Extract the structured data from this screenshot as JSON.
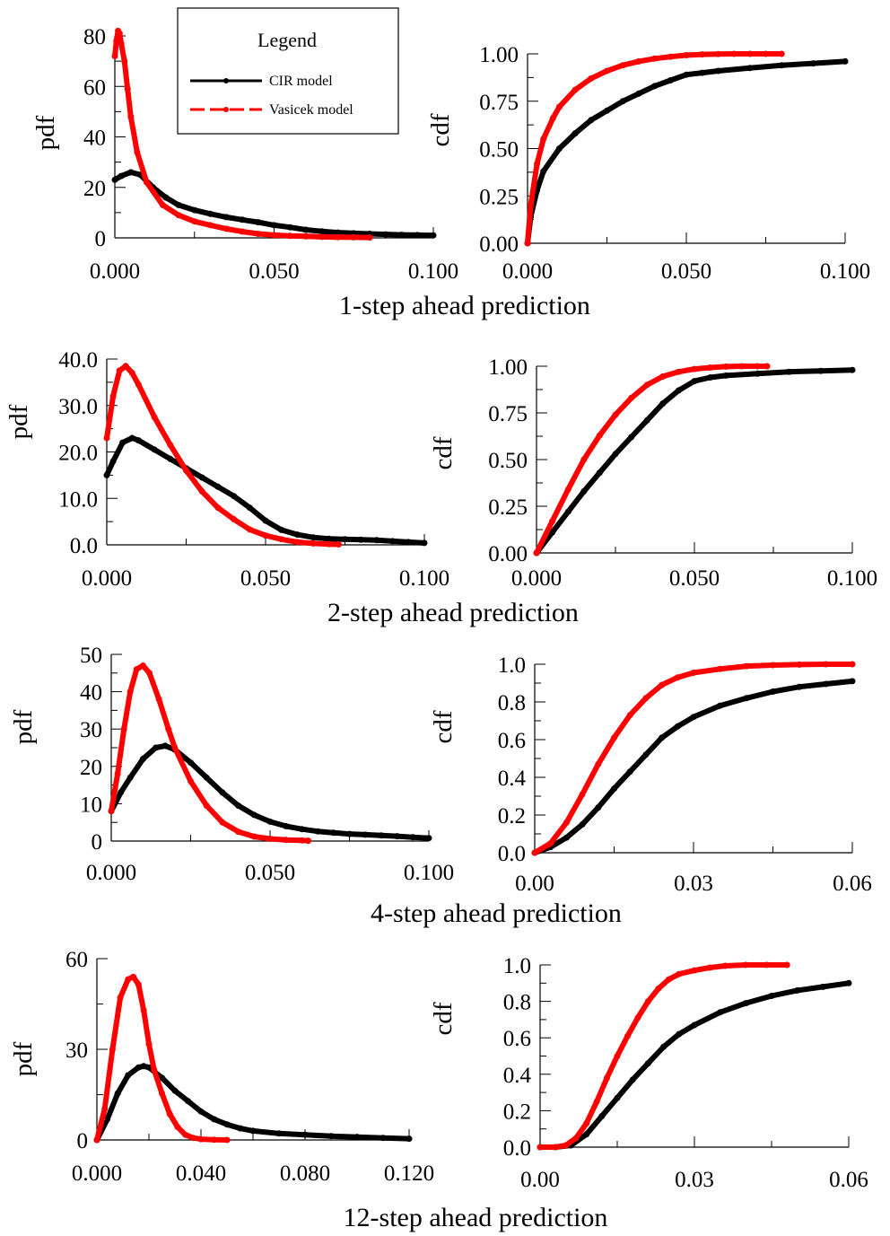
{
  "legend": {
    "title": "Legend",
    "entries": [
      {
        "label": "CIR model",
        "color": "#000000"
      },
      {
        "label": "Vasicek model",
        "color": "#ff0000"
      }
    ]
  },
  "chart_data": [
    {
      "type": "line",
      "kind": "pdf",
      "ylabel": "pdf",
      "caption": "1-step ahead prediction",
      "xlim": [
        0,
        0.1
      ],
      "ylim": [
        0,
        80
      ],
      "xticks": [
        "0.000",
        "0.050",
        "0.100"
      ],
      "yticks": [
        "0",
        "20",
        "40",
        "60",
        "80"
      ],
      "series": [
        {
          "x": [
            0,
            0.002,
            0.005,
            0.008,
            0.012,
            0.016,
            0.02,
            0.025,
            0.03,
            0.035,
            0.04,
            0.045,
            0.05,
            0.055,
            0.06,
            0.065,
            0.07,
            0.075,
            0.08,
            0.085,
            0.09,
            0.095,
            0.1
          ],
          "y": [
            23,
            24.5,
            26,
            25,
            20,
            16,
            13,
            11,
            9.5,
            8.2,
            7.2,
            6.2,
            5,
            4.2,
            3.2,
            2.6,
            2.1,
            1.8,
            1.6,
            1.4,
            1.2,
            1.1,
            1.0
          ]
        },
        {
          "x": [
            0,
            0.0005,
            0.001,
            0.0015,
            0.002,
            0.003,
            0.004,
            0.005,
            0.007,
            0.01,
            0.015,
            0.02,
            0.025,
            0.03,
            0.035,
            0.04,
            0.045,
            0.05,
            0.055,
            0.06,
            0.065,
            0.07,
            0.075,
            0.08
          ],
          "y": [
            72,
            78,
            82,
            81,
            77,
            70,
            59,
            48,
            34,
            22,
            13,
            9,
            6.5,
            5,
            3.6,
            2.5,
            1.6,
            1.1,
            0.8,
            0.6,
            0.4,
            0.3,
            0.2,
            0.15
          ]
        }
      ]
    },
    {
      "type": "line",
      "kind": "cdf",
      "ylabel": "cdf",
      "xlim": [
        0,
        0.1
      ],
      "ylim": [
        0,
        1
      ],
      "xticks": [
        "0.000",
        "0.050",
        "0.100"
      ],
      "yticks": [
        "0.00",
        "0.25",
        "0.50",
        "0.75",
        "1.00"
      ],
      "series": [
        {
          "x": [
            0,
            0.001,
            0.003,
            0.005,
            0.01,
            0.015,
            0.02,
            0.025,
            0.03,
            0.035,
            0.04,
            0.045,
            0.05,
            0.055,
            0.06,
            0.07,
            0.08,
            0.09,
            0.1
          ],
          "y": [
            0,
            0.14,
            0.28,
            0.38,
            0.5,
            0.58,
            0.65,
            0.7,
            0.75,
            0.79,
            0.83,
            0.86,
            0.89,
            0.9,
            0.91,
            0.925,
            0.94,
            0.95,
            0.96
          ]
        },
        {
          "x": [
            0,
            0.001,
            0.003,
            0.005,
            0.008,
            0.01,
            0.015,
            0.02,
            0.025,
            0.03,
            0.035,
            0.04,
            0.045,
            0.05,
            0.055,
            0.06,
            0.065,
            0.07,
            0.075,
            0.08
          ],
          "y": [
            0,
            0.2,
            0.42,
            0.55,
            0.66,
            0.72,
            0.81,
            0.87,
            0.91,
            0.94,
            0.96,
            0.975,
            0.985,
            0.993,
            0.997,
            0.999,
            1,
            1,
            1,
            1
          ]
        }
      ]
    },
    {
      "type": "line",
      "kind": "pdf",
      "ylabel": "pdf",
      "caption": "2-step ahead prediction",
      "xlim": [
        0,
        0.1
      ],
      "ylim": [
        0,
        40
      ],
      "xticks": [
        "0.000",
        "0.050",
        "0.100"
      ],
      "yticks": [
        "0.0",
        "10.0",
        "20.0",
        "30.0",
        "40.0"
      ],
      "series": [
        {
          "x": [
            0,
            0.002,
            0.005,
            0.008,
            0.01,
            0.015,
            0.02,
            0.025,
            0.03,
            0.035,
            0.04,
            0.045,
            0.05,
            0.055,
            0.06,
            0.065,
            0.07,
            0.075,
            0.08,
            0.085,
            0.09,
            0.095,
            0.1
          ],
          "y": [
            15,
            18,
            22,
            23,
            22.5,
            20.5,
            18.5,
            16.5,
            14.5,
            12.5,
            10.5,
            8,
            5.2,
            3.2,
            2.2,
            1.6,
            1.3,
            1.2,
            1.1,
            1.0,
            0.8,
            0.6,
            0.4
          ]
        },
        {
          "x": [
            0,
            0.002,
            0.004,
            0.006,
            0.008,
            0.01,
            0.015,
            0.02,
            0.025,
            0.03,
            0.035,
            0.04,
            0.045,
            0.05,
            0.055,
            0.06,
            0.065,
            0.07,
            0.073
          ],
          "y": [
            23,
            32,
            37.5,
            38.5,
            37,
            34.5,
            27.5,
            21.5,
            16,
            11.5,
            8,
            5.5,
            3.3,
            2,
            1.2,
            0.6,
            0.3,
            0.15,
            0.1
          ]
        }
      ]
    },
    {
      "type": "line",
      "kind": "cdf",
      "ylabel": "cdf",
      "xlim": [
        0,
        0.1
      ],
      "ylim": [
        0,
        1
      ],
      "xticks": [
        "0.000",
        "0.050",
        "0.100"
      ],
      "yticks": [
        "0.00",
        "0.25",
        "0.50",
        "0.75",
        "1.00"
      ],
      "series": [
        {
          "x": [
            0,
            0.005,
            0.01,
            0.015,
            0.02,
            0.025,
            0.03,
            0.035,
            0.04,
            0.045,
            0.05,
            0.055,
            0.06,
            0.07,
            0.08,
            0.09,
            0.1
          ],
          "y": [
            0,
            0.11,
            0.22,
            0.33,
            0.43,
            0.53,
            0.62,
            0.71,
            0.8,
            0.87,
            0.92,
            0.94,
            0.95,
            0.96,
            0.97,
            0.975,
            0.98
          ]
        },
        {
          "x": [
            0,
            0.005,
            0.01,
            0.015,
            0.02,
            0.025,
            0.03,
            0.035,
            0.04,
            0.045,
            0.05,
            0.055,
            0.06,
            0.065,
            0.07,
            0.073
          ],
          "y": [
            0,
            0.17,
            0.34,
            0.5,
            0.63,
            0.74,
            0.83,
            0.9,
            0.945,
            0.97,
            0.985,
            0.993,
            0.998,
            1,
            1,
            1
          ]
        }
      ]
    },
    {
      "type": "line",
      "kind": "pdf",
      "ylabel": "pdf",
      "caption": "4-step ahead prediction",
      "xlim": [
        0,
        0.1
      ],
      "ylim": [
        0,
        50
      ],
      "xticks": [
        "0.000",
        "0.050",
        "0.100"
      ],
      "yticks": [
        "0",
        "10",
        "20",
        "30",
        "40",
        "50"
      ],
      "series": [
        {
          "x": [
            0,
            0.003,
            0.006,
            0.01,
            0.014,
            0.017,
            0.02,
            0.025,
            0.03,
            0.035,
            0.04,
            0.045,
            0.05,
            0.055,
            0.06,
            0.065,
            0.07,
            0.075,
            0.08,
            0.085,
            0.09,
            0.095,
            0.1
          ],
          "y": [
            8,
            13,
            17,
            22,
            25,
            25.5,
            24.5,
            21,
            17,
            13,
            9.5,
            7,
            5.2,
            4,
            3.2,
            2.6,
            2.2,
            1.9,
            1.7,
            1.5,
            1.3,
            1.0,
            0.8
          ]
        },
        {
          "x": [
            0,
            0.002,
            0.004,
            0.006,
            0.008,
            0.01,
            0.012,
            0.015,
            0.018,
            0.02,
            0.025,
            0.03,
            0.035,
            0.04,
            0.045,
            0.05,
            0.055,
            0.06,
            0.062
          ],
          "y": [
            8,
            18,
            30,
            40,
            46,
            47,
            45,
            38,
            30,
            25,
            16,
            9.5,
            5,
            2.5,
            1.2,
            0.6,
            0.3,
            0.2,
            0.1
          ]
        }
      ]
    },
    {
      "type": "line",
      "kind": "cdf",
      "ylabel": "cdf",
      "xlim": [
        0,
        0.06
      ],
      "ylim": [
        0,
        1
      ],
      "xticks": [
        "0.00",
        "0.03",
        "0.06"
      ],
      "yticks": [
        "0.0",
        "0.2",
        "0.4",
        "0.6",
        "0.8",
        "1.0"
      ],
      "series": [
        {
          "x": [
            0,
            0.003,
            0.006,
            0.009,
            0.012,
            0.015,
            0.018,
            0.021,
            0.024,
            0.027,
            0.03,
            0.035,
            0.04,
            0.045,
            0.05,
            0.055,
            0.06
          ],
          "y": [
            0,
            0.03,
            0.08,
            0.15,
            0.24,
            0.34,
            0.43,
            0.52,
            0.61,
            0.67,
            0.72,
            0.78,
            0.82,
            0.855,
            0.88,
            0.895,
            0.91
          ]
        },
        {
          "x": [
            0,
            0.003,
            0.006,
            0.009,
            0.012,
            0.015,
            0.018,
            0.021,
            0.024,
            0.027,
            0.03,
            0.035,
            0.04,
            0.045,
            0.05,
            0.055,
            0.06
          ],
          "y": [
            0,
            0.05,
            0.16,
            0.31,
            0.47,
            0.61,
            0.73,
            0.82,
            0.89,
            0.93,
            0.955,
            0.975,
            0.99,
            0.995,
            0.998,
            1,
            1
          ]
        }
      ]
    },
    {
      "type": "line",
      "kind": "pdf",
      "ylabel": "pdf",
      "caption": "12-step ahead prediction",
      "xlim": [
        0,
        0.12
      ],
      "ylim": [
        0,
        70
      ],
      "xticks": [
        "0.000",
        "0.040",
        "0.080",
        "0.120"
      ],
      "yticks": [
        "0",
        "30",
        "60"
      ],
      "series": [
        {
          "x": [
            0,
            0.004,
            0.008,
            0.012,
            0.016,
            0.018,
            0.02,
            0.025,
            0.03,
            0.035,
            0.04,
            0.045,
            0.05,
            0.055,
            0.06,
            0.07,
            0.08,
            0.09,
            0.1,
            0.11,
            0.12
          ],
          "y": [
            0,
            8,
            18,
            25,
            28,
            28.5,
            28,
            24,
            19,
            15,
            11,
            8,
            6,
            4.5,
            3.5,
            2.5,
            2,
            1.5,
            1.1,
            0.8,
            0.5
          ]
        },
        {
          "x": [
            0,
            0.003,
            0.006,
            0.009,
            0.012,
            0.014,
            0.016,
            0.018,
            0.02,
            0.022,
            0.025,
            0.028,
            0.031,
            0.034,
            0.037,
            0.04,
            0.045,
            0.05
          ],
          "y": [
            0,
            12,
            35,
            55,
            62,
            63,
            60,
            50,
            37,
            27,
            18,
            10,
            5,
            2,
            0.8,
            0.3,
            0.1,
            0
          ]
        }
      ]
    },
    {
      "type": "line",
      "kind": "cdf",
      "ylabel": "cdf",
      "xlim": [
        0,
        0.06
      ],
      "ylim": [
        0,
        1
      ],
      "xticks": [
        "0.00",
        "0.03",
        "0.06"
      ],
      "yticks": [
        "0.0",
        "0.2",
        "0.4",
        "0.6",
        "0.8",
        "1.0"
      ],
      "series": [
        {
          "x": [
            0,
            0.003,
            0.006,
            0.009,
            0.012,
            0.015,
            0.018,
            0.021,
            0.024,
            0.027,
            0.03,
            0.035,
            0.04,
            0.045,
            0.05,
            0.055,
            0.06
          ],
          "y": [
            0,
            0,
            0.01,
            0.07,
            0.17,
            0.27,
            0.37,
            0.46,
            0.55,
            0.62,
            0.67,
            0.74,
            0.79,
            0.83,
            0.86,
            0.88,
            0.9
          ]
        },
        {
          "x": [
            0,
            0.003,
            0.005,
            0.007,
            0.009,
            0.011,
            0.013,
            0.015,
            0.017,
            0.019,
            0.021,
            0.023,
            0.025,
            0.027,
            0.03,
            0.033,
            0.036,
            0.04,
            0.044,
            0.048
          ],
          "y": [
            0,
            0,
            0.01,
            0.05,
            0.13,
            0.25,
            0.38,
            0.5,
            0.61,
            0.71,
            0.8,
            0.87,
            0.92,
            0.95,
            0.97,
            0.985,
            0.995,
            1,
            1,
            1
          ]
        }
      ]
    }
  ]
}
